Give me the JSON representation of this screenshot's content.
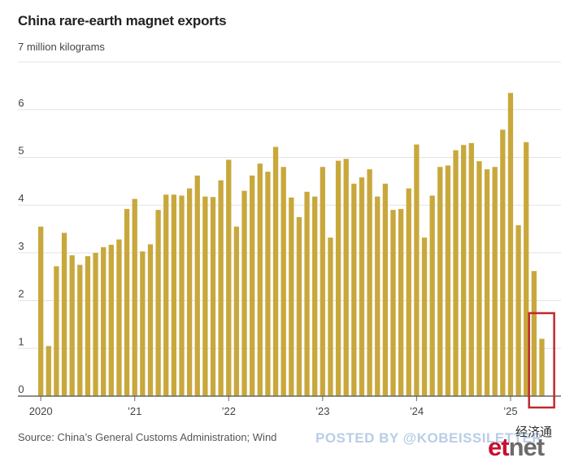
{
  "title": "China rare-earth magnet exports",
  "unit_label": "7 million kilograms",
  "source": "Source: China’s General Customs Administration; Wind",
  "watermark": {
    "posted_by": "POSTED BY @KOBEISSILETTER",
    "cn_text": "经济通",
    "etnet_e": "et",
    "etnet_net": "net"
  },
  "colors": {
    "bar": "#c8a83c",
    "grid": "#e3e3e3",
    "baseline": "#666666",
    "highlight_box": "#c0282d"
  },
  "chart_data": {
    "type": "bar",
    "title": "China rare-earth magnet exports",
    "ylabel": "7 million kilograms",
    "xlabel": "",
    "ylim": [
      0,
      7
    ],
    "yticks": [
      0,
      1,
      2,
      3,
      4,
      5,
      6
    ],
    "ytick_labels": [
      "0",
      "1",
      "2",
      "3",
      "4",
      "5",
      "6"
    ],
    "xtick_labels": [
      {
        "label": "2020",
        "index": 0
      },
      {
        "label": "’21",
        "index": 12
      },
      {
        "label": "’22",
        "index": 24
      },
      {
        "label": "’23",
        "index": 36
      },
      {
        "label": "’24",
        "index": 48
      },
      {
        "label": "’25",
        "index": 60
      }
    ],
    "grid": true,
    "highlight_indices": [
      63,
      64
    ],
    "values": [
      3.55,
      1.05,
      2.72,
      3.42,
      2.95,
      2.75,
      2.93,
      3.0,
      3.12,
      3.17,
      3.28,
      3.92,
      4.13,
      3.03,
      3.18,
      3.9,
      4.22,
      4.22,
      4.2,
      4.35,
      4.62,
      4.18,
      4.17,
      4.52,
      4.95,
      3.55,
      4.3,
      4.62,
      4.87,
      4.7,
      5.22,
      4.8,
      4.16,
      3.75,
      4.28,
      4.18,
      4.8,
      3.32,
      4.93,
      4.97,
      4.45,
      4.58,
      4.75,
      4.18,
      4.45,
      3.9,
      3.92,
      4.35,
      5.27,
      3.32,
      4.2,
      4.8,
      4.83,
      5.15,
      5.26,
      5.3,
      4.92,
      4.75,
      4.8,
      5.58,
      6.35,
      3.58,
      5.32,
      2.62,
      1.2
    ]
  }
}
